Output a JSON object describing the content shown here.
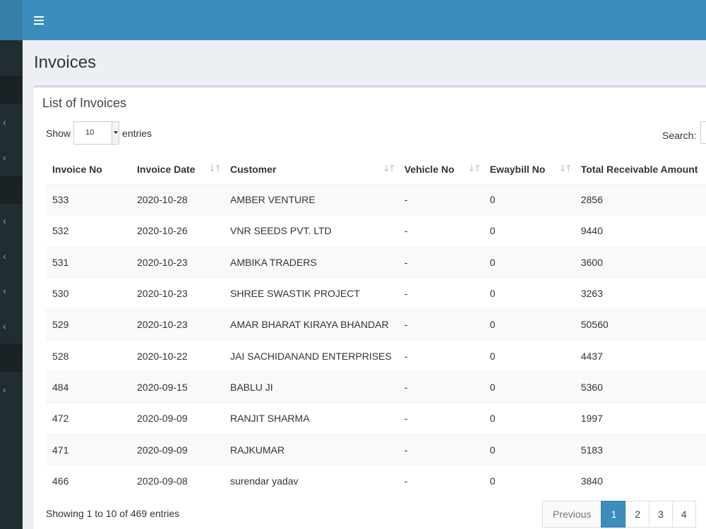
{
  "header": {
    "menu_icon": "hamburger-icon"
  },
  "sidebar": {
    "icon": "chevron-left-icon"
  },
  "page": {
    "title": "Invoices"
  },
  "box": {
    "title": "List of Invoices"
  },
  "length_control": {
    "prefix": "Show",
    "value": "10",
    "suffix": "entries"
  },
  "search": {
    "label": "Search:",
    "value": ""
  },
  "table": {
    "columns": [
      "Invoice No",
      "Invoice Date",
      "Customer",
      "Vehicle No",
      "Ewaybill No",
      "Total Receivable Amount"
    ],
    "rows": [
      [
        "533",
        "2020-10-28",
        "AMBER VENTURE",
        "-",
        "0",
        "2856"
      ],
      [
        "532",
        "2020-10-26",
        "VNR SEEDS PVT. LTD",
        "-",
        "0",
        "9440"
      ],
      [
        "531",
        "2020-10-23",
        "AMBIKA TRADERS",
        "-",
        "0",
        "3600"
      ],
      [
        "530",
        "2020-10-23",
        "SHREE SWASTIK PROJECT",
        "-",
        "0",
        "3263"
      ],
      [
        "529",
        "2020-10-23",
        "AMAR BHARAT KIRAYA BHANDAR",
        "-",
        "0",
        "50560"
      ],
      [
        "528",
        "2020-10-22",
        "JAI SACHIDANAND ENTERPRISES",
        "-",
        "0",
        "4437"
      ],
      [
        "484",
        "2020-09-15",
        "BABLU JI",
        "-",
        "0",
        "5360"
      ],
      [
        "472",
        "2020-09-09",
        "RANJIT SHARMA",
        "-",
        "0",
        "1997"
      ],
      [
        "471",
        "2020-09-09",
        "RAJKUMAR",
        "-",
        "0",
        "5183"
      ],
      [
        "466",
        "2020-09-08",
        "surendar yadav",
        "-",
        "0",
        "3840"
      ]
    ]
  },
  "footer": {
    "info": "Showing 1 to 10 of 469 entries"
  },
  "pagination": {
    "previous": "Previous",
    "pages": [
      "1",
      "2",
      "3",
      "4"
    ],
    "active_page": "1"
  },
  "colors": {
    "header": "#3c8dbc",
    "sidebar": "#222d32",
    "active_page": "#3c8dbc"
  }
}
